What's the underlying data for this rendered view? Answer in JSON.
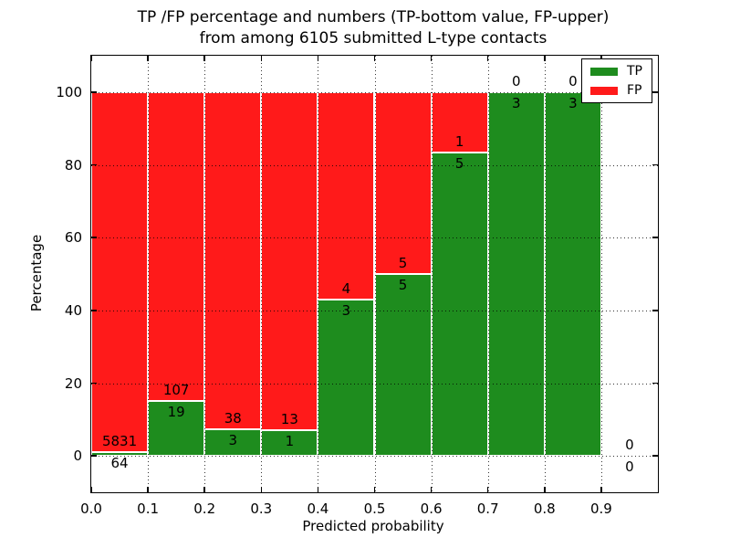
{
  "chart_data": {
    "type": "bar",
    "stacked": true,
    "unit": "percent",
    "title_line1": "TP /FP percentage and numbers (TP-bottom value, FP-upper)",
    "title_line2": "from among 6105 submitted L-type contacts",
    "xlabel": "Predicted probability",
    "ylabel": "Percentage",
    "xlim": [
      0.0,
      1.0
    ],
    "ylim": [
      -10,
      110
    ],
    "x_ticks": [
      0.0,
      0.1,
      0.2,
      0.3,
      0.4,
      0.5,
      0.6,
      0.7,
      0.8,
      0.9
    ],
    "x_tick_labels": [
      "0.0",
      "0.1",
      "0.2",
      "0.3",
      "0.4",
      "0.5",
      "0.6",
      "0.7",
      "0.8",
      "0.9"
    ],
    "y_ticks": [
      0,
      20,
      40,
      60,
      80,
      100
    ],
    "y_tick_labels": [
      "0",
      "20",
      "40",
      "60",
      "80",
      "100"
    ],
    "grid": "dotted",
    "total_contacts": 6105,
    "legend": {
      "position": "upper-right",
      "items": [
        {
          "label": "TP",
          "color": "#1e8c1e"
        },
        {
          "label": "FP",
          "color": "#ff1a1a"
        }
      ]
    },
    "bins": [
      {
        "x_start": 0.0,
        "x_end": 0.1,
        "tp": 64,
        "fp": 5831
      },
      {
        "x_start": 0.1,
        "x_end": 0.2,
        "tp": 19,
        "fp": 107
      },
      {
        "x_start": 0.2,
        "x_end": 0.3,
        "tp": 3,
        "fp": 38
      },
      {
        "x_start": 0.3,
        "x_end": 0.4,
        "tp": 1,
        "fp": 13
      },
      {
        "x_start": 0.4,
        "x_end": 0.5,
        "tp": 3,
        "fp": 4
      },
      {
        "x_start": 0.5,
        "x_end": 0.6,
        "tp": 5,
        "fp": 5
      },
      {
        "x_start": 0.6,
        "x_end": 0.7,
        "tp": 5,
        "fp": 1
      },
      {
        "x_start": 0.7,
        "x_end": 0.8,
        "tp": 3,
        "fp": 0
      },
      {
        "x_start": 0.8,
        "x_end": 0.9,
        "tp": 3,
        "fp": 0
      },
      {
        "x_start": 0.9,
        "x_end": 1.0,
        "tp": 0,
        "fp": 0
      }
    ],
    "colors": {
      "tp": "#1e8c1e",
      "fp": "#ff1a1a",
      "grid": "#000000",
      "text": "#000000",
      "background": "#ffffff"
    }
  }
}
